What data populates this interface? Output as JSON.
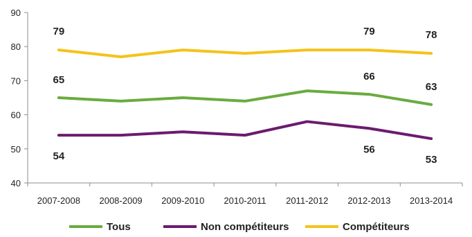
{
  "chart_data": {
    "type": "line",
    "categories": [
      "2007-2008",
      "2008-2009",
      "2009-2010",
      "2010-2011",
      "2011-2012",
      "2012-2013",
      "2013-2014"
    ],
    "ylim": [
      40,
      90
    ],
    "yticks": [
      40,
      50,
      60,
      70,
      80,
      90
    ],
    "grid": false,
    "legend": "bottom",
    "series": [
      {
        "name": "Tous",
        "color": "#6aab3e",
        "values": [
          65,
          64,
          65,
          64,
          67,
          66,
          63
        ]
      },
      {
        "name": "Non compétiteurs",
        "color": "#6b1b6e",
        "values": [
          54,
          54,
          55,
          54,
          58,
          56,
          53
        ]
      },
      {
        "name": "Compétiteurs",
        "color": "#f5c21a",
        "values": [
          79,
          77,
          79,
          78,
          79,
          79,
          78
        ]
      }
    ],
    "data_labels": [
      {
        "series": 2,
        "index": 0,
        "text": "79"
      },
      {
        "series": 2,
        "index": 5,
        "text": "79"
      },
      {
        "series": 2,
        "index": 6,
        "text": "78"
      },
      {
        "series": 0,
        "index": 0,
        "text": "65"
      },
      {
        "series": 0,
        "index": 5,
        "text": "66"
      },
      {
        "series": 0,
        "index": 6,
        "text": "63"
      },
      {
        "series": 1,
        "index": 0,
        "text": "54"
      },
      {
        "series": 1,
        "index": 5,
        "text": "56"
      },
      {
        "series": 1,
        "index": 6,
        "text": "53"
      }
    ]
  }
}
